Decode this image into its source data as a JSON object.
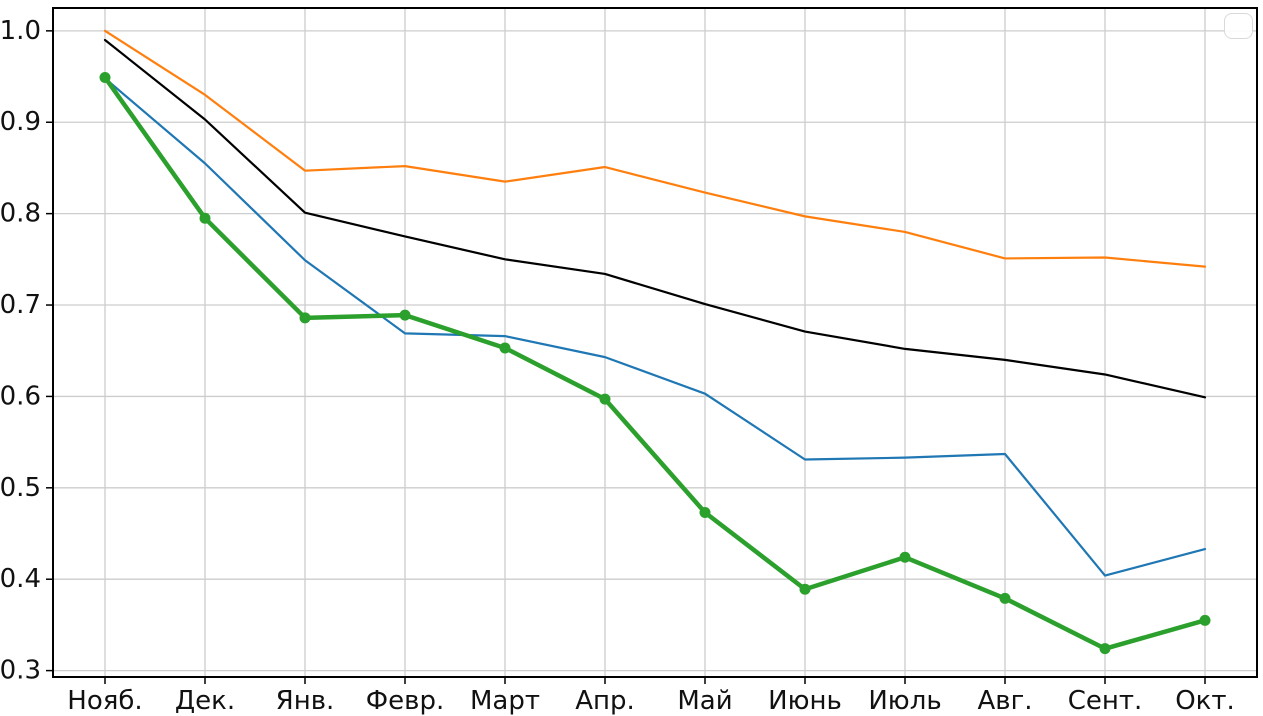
{
  "figure": {
    "background_color": "#ffffff",
    "frame_color": "#000000"
  },
  "chart_data": {
    "type": "line",
    "title": "",
    "xlabel": "",
    "ylabel": "",
    "grid": true,
    "grid_color": "#cdcdcd",
    "legend_position": "upper-right",
    "legend_entries": [],
    "categories": [
      "Нояб.",
      "Дек.",
      "Янв.",
      "Февр.",
      "Март",
      "Апр.",
      "Май",
      "Июнь",
      "Июль",
      "Авг.",
      "Сент.",
      "Окт."
    ],
    "y_ticks": [
      "0.3",
      "0.4",
      "0.5",
      "0.6",
      "0.7",
      "0.8",
      "0.9",
      "1.0"
    ],
    "ylim": [
      0.293,
      1.025
    ],
    "series": [
      {
        "name": "orange-line",
        "color": "#ff7f0e",
        "line_width": 2.2,
        "marker": "none",
        "values": [
          1.0,
          0.93,
          0.847,
          0.852,
          0.835,
          0.851,
          0.823,
          0.797,
          0.78,
          0.751,
          0.752,
          0.742
        ]
      },
      {
        "name": "black-line",
        "color": "#000000",
        "line_width": 2.2,
        "marker": "none",
        "values": [
          0.99,
          0.903,
          0.801,
          0.775,
          0.75,
          0.734,
          0.701,
          0.671,
          0.652,
          0.64,
          0.624,
          0.599
        ]
      },
      {
        "name": "blue-line",
        "color": "#1f77b4",
        "line_width": 2.2,
        "marker": "none",
        "values": [
          0.948,
          0.855,
          0.749,
          0.669,
          0.666,
          0.643,
          0.603,
          0.531,
          0.533,
          0.537,
          0.404,
          0.433
        ]
      },
      {
        "name": "green-marked-line",
        "color": "#2ca02c",
        "line_width": 4.5,
        "marker": "circle",
        "marker_radius": 5.5,
        "values": [
          0.949,
          0.795,
          0.686,
          0.689,
          0.653,
          0.597,
          0.473,
          0.389,
          0.424,
          0.379,
          0.324,
          0.355
        ]
      }
    ]
  }
}
